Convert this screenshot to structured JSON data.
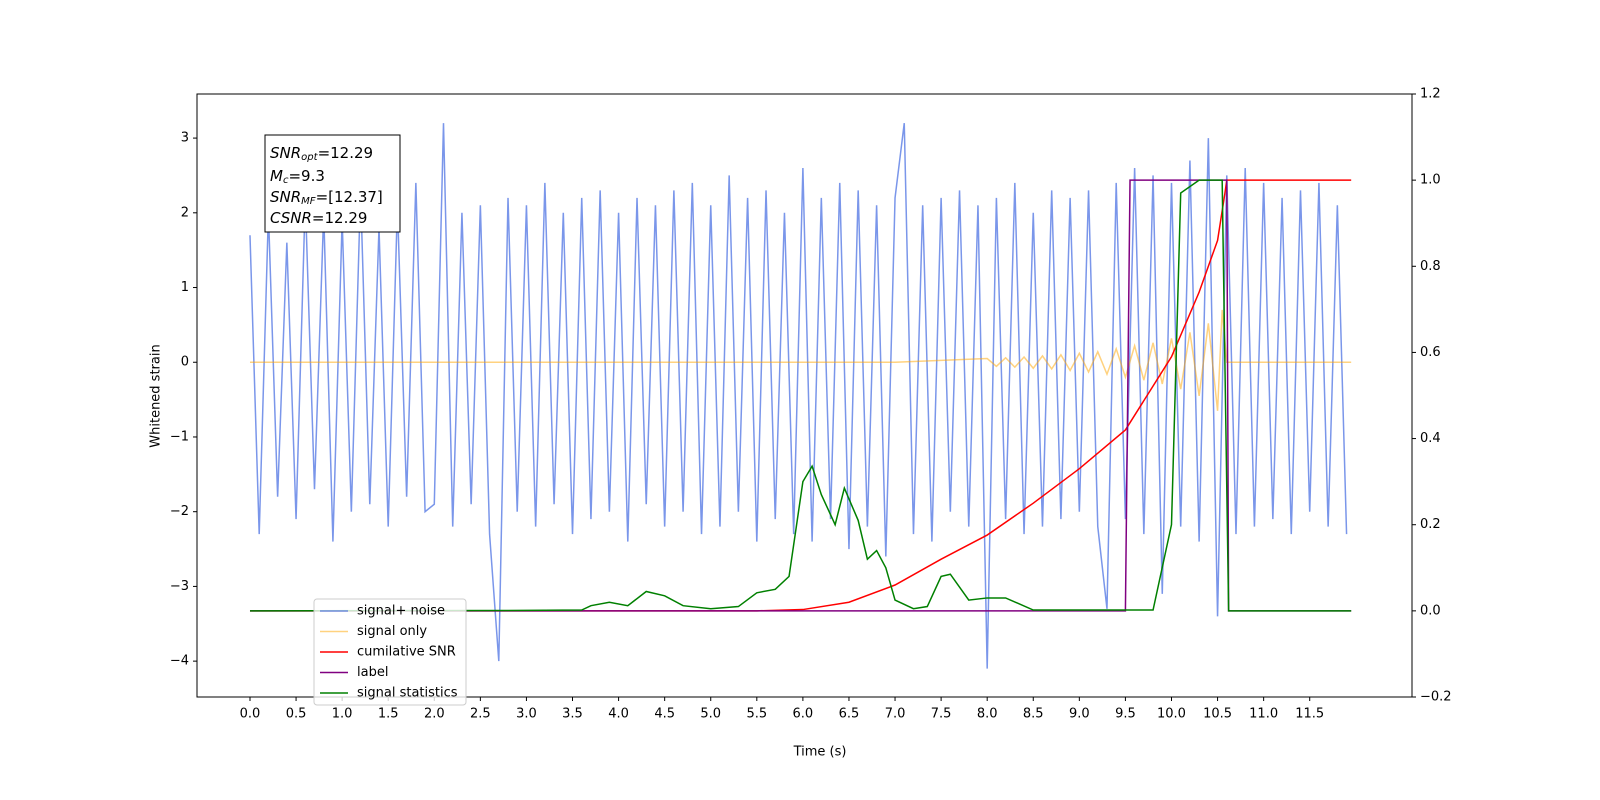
{
  "chart_data": {
    "type": "line",
    "xlabel": "Time (s)",
    "ylabel": "Whitened strain",
    "annotation": [
      {
        "main": "SNR",
        "sub": "opt",
        "rest": "=12.29"
      },
      {
        "main": "M",
        "sub": "c",
        "rest": "=9.3"
      },
      {
        "main": "SNR",
        "sub": "MF",
        "rest": "=[12.37]"
      },
      {
        "main": "CSNR",
        "sub": "",
        "rest": "=12.29"
      }
    ],
    "xlim": [
      -0.575,
      12.61
    ],
    "ylim": [
      -4.48,
      3.59
    ],
    "y2lim": [
      -0.2,
      1.2
    ],
    "xticks": [
      {
        "value": 0,
        "label": "0.0"
      },
      0.5,
      {
        "value": 1,
        "label": "1.0"
      },
      1.5,
      {
        "value": 2,
        "label": "2.0"
      },
      2.5,
      {
        "value": 3,
        "label": "3.0"
      },
      3.5,
      {
        "value": 4,
        "label": "4.0"
      },
      4.5,
      {
        "value": 5,
        "label": "5.0"
      },
      5.5,
      {
        "value": 6,
        "label": "6.0"
      },
      6.5,
      {
        "value": 7,
        "label": "7.0"
      },
      7.5,
      {
        "value": 8,
        "label": "8.0"
      },
      8.5,
      {
        "value": 9,
        "label": "9.0"
      },
      9.5,
      {
        "value": 10,
        "label": "10.0"
      },
      10.5,
      {
        "value": 11,
        "label": "11.0"
      },
      11.5
    ],
    "yticks": [
      {
        "value": -4,
        "label": "−4"
      },
      {
        "value": -3,
        "label": "−3"
      },
      {
        "value": -2,
        "label": "−2"
      },
      {
        "value": -1,
        "label": "−1"
      },
      0,
      1,
      2,
      3
    ],
    "y2ticks": [
      {
        "value": -0.2,
        "label": "−0.2"
      },
      {
        "value": 0,
        "label": "0.0"
      },
      0.2,
      0.4,
      0.6,
      0.8,
      {
        "value": 1,
        "label": "1.0"
      },
      1.2
    ],
    "legend": "lower left",
    "series": [
      {
        "name": "signal+ noise",
        "color": "#4169e1",
        "alpha": 0.7,
        "axis": "y",
        "x": [
          0,
          0.1,
          0.2,
          0.3,
          0.4,
          0.5,
          0.6,
          0.7,
          0.8,
          0.9,
          1,
          1.1,
          1.2,
          1.3,
          1.4,
          1.5,
          1.6,
          1.7,
          1.8,
          1.9,
          2,
          2.1,
          2.2,
          2.3,
          2.4,
          2.5,
          2.6,
          2.7,
          2.8,
          2.9,
          3,
          3.1,
          3.2,
          3.3,
          3.4,
          3.5,
          3.6,
          3.7,
          3.8,
          3.9,
          4,
          4.1,
          4.2,
          4.3,
          4.4,
          4.5,
          4.6,
          4.7,
          4.8,
          4.9,
          5,
          5.1,
          5.2,
          5.3,
          5.4,
          5.5,
          5.6,
          5.7,
          5.8,
          5.9,
          6,
          6.1,
          6.2,
          6.3,
          6.4,
          6.5,
          6.6,
          6.7,
          6.8,
          6.9,
          7,
          7.1,
          7.2,
          7.3,
          7.4,
          7.5,
          7.6,
          7.7,
          7.8,
          7.9,
          8,
          8.1,
          8.2,
          8.3,
          8.4,
          8.5,
          8.6,
          8.7,
          8.8,
          8.9,
          9,
          9.1,
          9.2,
          9.3,
          9.4,
          9.5,
          9.6,
          9.7,
          9.8,
          9.9,
          10,
          10.1,
          10.2,
          10.3,
          10.4,
          10.5,
          10.6,
          10.7,
          10.8,
          10.9,
          11,
          11.1,
          11.2,
          11.3,
          11.4,
          11.5,
          11.6,
          11.7,
          11.8,
          11.9
        ],
        "values": [
          1.7,
          -2.3,
          2.0,
          -1.8,
          1.6,
          -2.1,
          2.2,
          -1.7,
          2.0,
          -2.4,
          1.9,
          -2.0,
          2.3,
          -1.9,
          1.8,
          -2.2,
          2.1,
          -1.8,
          2.4,
          -2.0,
          -1.9,
          3.2,
          -2.2,
          2.0,
          -1.9,
          2.1,
          -2.3,
          -4.0,
          2.2,
          -2.0,
          2.1,
          -2.2,
          2.4,
          -1.9,
          2.0,
          -2.3,
          2.2,
          -2.1,
          2.3,
          -2.0,
          2.0,
          -2.4,
          2.2,
          -1.9,
          2.1,
          -2.2,
          2.3,
          -2.0,
          2.4,
          -2.3,
          2.1,
          -2.2,
          2.5,
          -2.0,
          2.2,
          -2.4,
          2.3,
          -2.1,
          2.0,
          -2.3,
          2.6,
          -2.4,
          2.2,
          -2.1,
          2.4,
          -2.5,
          2.3,
          -2.2,
          2.1,
          -2.6,
          2.2,
          3.2,
          -2.3,
          2.1,
          -2.4,
          2.2,
          -2.0,
          2.3,
          -2.2,
          2.1,
          -4.1,
          2.2,
          -2.1,
          2.4,
          -2.3,
          2.0,
          -2.2,
          2.3,
          -2.1,
          2.2,
          -2.0,
          2.3,
          -2.2,
          -3.3,
          2.4,
          -2.1,
          2.6,
          -2.3,
          2.5,
          -3.1,
          2.4,
          -2.2,
          2.7,
          -2.4,
          3.0,
          -3.4,
          2.5,
          -2.3,
          2.6,
          -2.2,
          2.4,
          -2.1,
          2.2,
          -2.3,
          2.3,
          -2.0,
          2.4,
          -2.2,
          2.1,
          -2.3
        ]
      },
      {
        "name": "signal only",
        "color": "#ffa500",
        "alpha": 0.5,
        "axis": "y",
        "x": [
          0,
          7,
          8,
          8.1,
          8.2,
          8.3,
          8.4,
          8.5,
          8.6,
          8.7,
          8.8,
          8.9,
          9,
          9.1,
          9.2,
          9.3,
          9.4,
          9.5,
          9.6,
          9.7,
          9.8,
          9.9,
          10,
          10.1,
          10.2,
          10.3,
          10.4,
          10.5,
          10.55,
          10.6,
          11.95
        ],
        "values": [
          0,
          0,
          0.05,
          -0.055,
          0.06,
          -0.065,
          0.07,
          -0.08,
          0.085,
          -0.09,
          0.1,
          -0.11,
          0.12,
          -0.13,
          0.14,
          -0.16,
          0.18,
          -0.2,
          0.22,
          -0.24,
          0.26,
          -0.29,
          0.32,
          -0.36,
          0.4,
          -0.45,
          0.52,
          -0.65,
          0.7,
          0,
          0
        ]
      },
      {
        "name": "cumilative SNR",
        "color": "#ff0000",
        "alpha": 1,
        "axis": "y2",
        "x": [
          0,
          5.5,
          6,
          6.5,
          7,
          7.5,
          8,
          8.5,
          9,
          9.5,
          10,
          10.3,
          10.5,
          10.58,
          10.6,
          11.95
        ],
        "values": [
          0,
          0,
          0.003,
          0.02,
          0.06,
          0.12,
          0.176,
          0.25,
          0.33,
          0.42,
          0.59,
          0.74,
          0.86,
          0.97,
          1,
          1
        ]
      },
      {
        "name": "label",
        "color": "#800080",
        "alpha": 1,
        "axis": "y2",
        "x": [
          0,
          9.5,
          9.55,
          10.6,
          10.62,
          11.95
        ],
        "values": [
          0,
          0,
          1,
          1,
          0,
          0
        ]
      },
      {
        "name": "signal statistics",
        "color": "#008000",
        "alpha": 1,
        "axis": "y2",
        "x": [
          0,
          3,
          3.6,
          3.7,
          3.9,
          4.1,
          4.3,
          4.5,
          4.7,
          5,
          5.3,
          5.5,
          5.7,
          5.85,
          6,
          6.1,
          6.2,
          6.35,
          6.45,
          6.6,
          6.7,
          6.8,
          6.9,
          7,
          7.2,
          7.35,
          7.5,
          7.6,
          7.8,
          8,
          8.2,
          8.5,
          9.8,
          10,
          10.1,
          10.3,
          10.55,
          10.62,
          11.95
        ],
        "values": [
          0,
          0.001,
          0.002,
          0.012,
          0.02,
          0.012,
          0.045,
          0.035,
          0.012,
          0.005,
          0.01,
          0.042,
          0.05,
          0.08,
          0.3,
          0.336,
          0.27,
          0.2,
          0.285,
          0.21,
          0.12,
          0.14,
          0.1,
          0.025,
          0.005,
          0.01,
          0.08,
          0.085,
          0.025,
          0.03,
          0.03,
          0.002,
          0.002,
          0.2,
          0.97,
          1,
          1,
          0,
          0
        ]
      }
    ]
  }
}
